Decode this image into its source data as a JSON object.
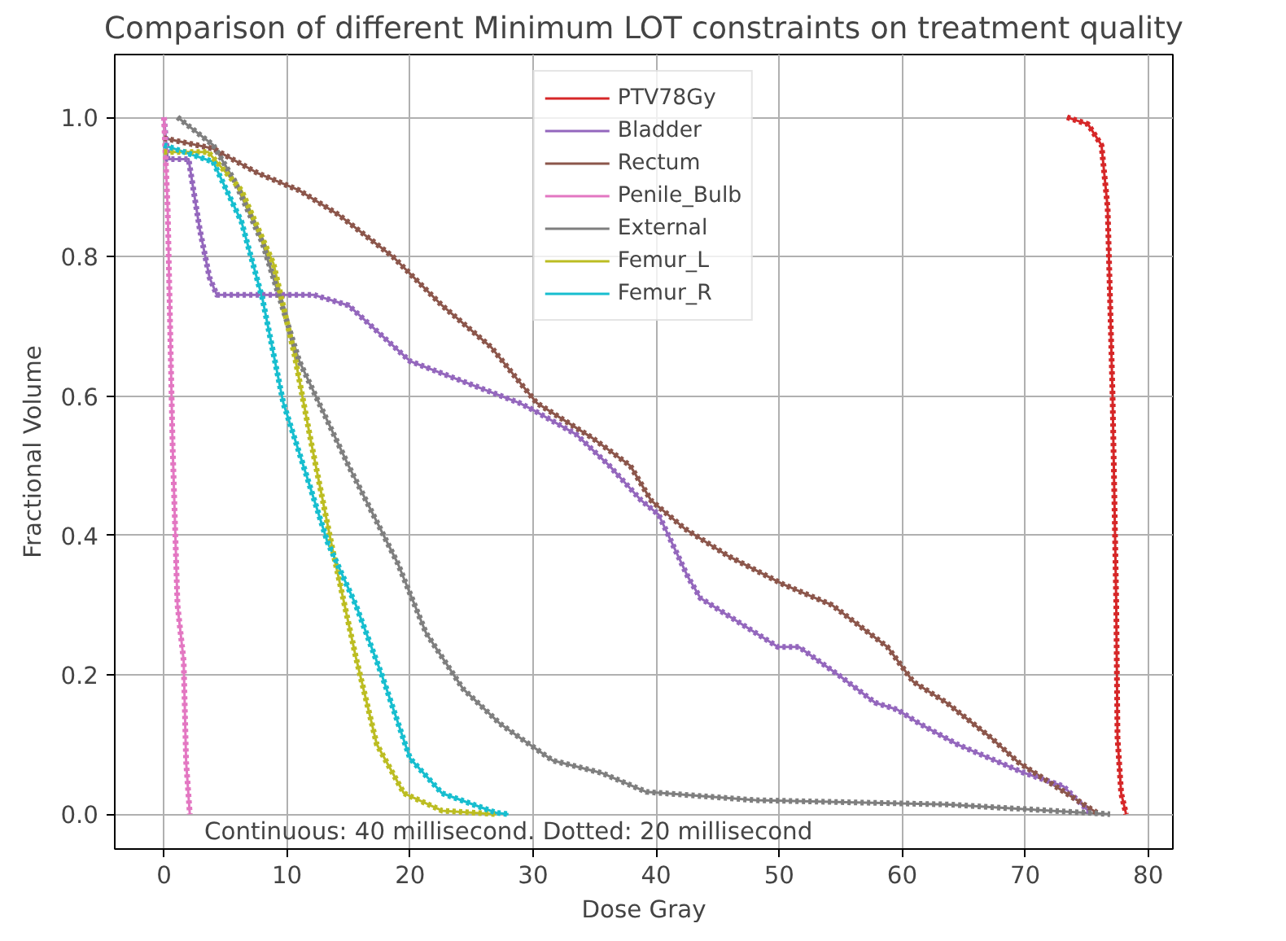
{
  "chart_data": {
    "type": "line",
    "title": "Comparison of different Minimum LOT constraints on treatment quality",
    "xlabel": "Dose Gray",
    "ylabel": "Fractional Volume",
    "xlim": [
      -4,
      82
    ],
    "ylim": [
      -0.05,
      1.09
    ],
    "xticks": [
      0,
      10,
      20,
      30,
      40,
      50,
      60,
      70,
      80
    ],
    "yticks": [
      {
        "value": 0,
        "label": "0.0"
      },
      {
        "value": 0.2,
        "label": "0.2"
      },
      {
        "value": 0.4,
        "label": "0.4"
      },
      {
        "value": 0.6,
        "label": "0.6"
      },
      {
        "value": 0.8,
        "label": "0.8"
      },
      {
        "value": 1,
        "label": "1.0"
      }
    ],
    "grid": true,
    "legend": "top",
    "marker": "none",
    "line_style": "solid",
    "annotations": [
      "Continuous: 40 millisecond. Dotted: 20 millisecond"
    ],
    "series": [
      {
        "name": "PTV78Gy",
        "color": "#d62728",
        "x": [
          73.4,
          75.1,
          76.2,
          76.7,
          77.1,
          77.4,
          77.5,
          77.8,
          78.2
        ],
        "values": [
          1.0,
          0.99,
          0.96,
          0.87,
          0.6,
          0.3,
          0.11,
          0.03,
          0
        ]
      },
      {
        "name": "Bladder",
        "color": "#9467bd",
        "x": [
          0,
          0.3,
          2,
          2.9,
          3.7,
          4.3,
          12.2,
          15,
          20,
          28.9,
          30,
          33.5,
          36.2,
          38.8,
          40.2,
          42.6,
          43.6,
          49.9,
          51.6,
          54.8,
          57.8,
          59.6,
          61.4,
          64.5,
          69.8,
          73.1,
          75.4
        ],
        "values": [
          1.0,
          0.94,
          0.94,
          0.84,
          0.77,
          0.745,
          0.745,
          0.73,
          0.65,
          0.59,
          0.58,
          0.545,
          0.5,
          0.45,
          0.43,
          0.34,
          0.31,
          0.24,
          0.24,
          0.2,
          0.16,
          0.15,
          0.13,
          0.1,
          0.06,
          0.04,
          0
        ]
      },
      {
        "name": "Rectum",
        "color": "#8c564b",
        "x": [
          0,
          4,
          7.6,
          11,
          14.2,
          18.6,
          22.6,
          26.6,
          28.9,
          30.3,
          34.8,
          37.9,
          39.6,
          42.3,
          45.9,
          50.3,
          54.3,
          58.8,
          60.9,
          63.6,
          67.2,
          69.4,
          72.9,
          76
        ],
        "values": [
          0.97,
          0.955,
          0.92,
          0.895,
          0.86,
          0.8,
          0.73,
          0.67,
          0.62,
          0.59,
          0.54,
          0.5,
          0.45,
          0.41,
          0.37,
          0.33,
          0.3,
          0.24,
          0.19,
          0.16,
          0.11,
          0.075,
          0.035,
          0
        ]
      },
      {
        "name": "Penile_Bulb",
        "color": "#e377c2",
        "x": [
          0,
          0.3,
          0.7,
          1.1,
          1.6,
          1.8,
          2.1
        ],
        "values": [
          1.0,
          0.87,
          0.53,
          0.3,
          0.22,
          0.075,
          0
        ]
      },
      {
        "name": "External",
        "color": "#7f7f7f",
        "x": [
          1.1,
          4,
          5.7,
          8,
          11,
          15,
          19,
          21.3,
          24.3,
          27.3,
          28.9,
          31.6,
          35.6,
          39.2,
          48.1,
          63.6,
          70.2,
          76.9
        ],
        "values": [
          1.0,
          0.96,
          0.91,
          0.82,
          0.65,
          0.5,
          0.36,
          0.26,
          0.18,
          0.13,
          0.11,
          0.077,
          0.059,
          0.032,
          0.02,
          0.014,
          0.007,
          0
        ]
      },
      {
        "name": "Femur_L",
        "color": "#bcbd22",
        "x": [
          0,
          3.6,
          6.3,
          8.9,
          10.6,
          12,
          13.7,
          15.6,
          17.3,
          19.5,
          22.6,
          27
        ],
        "values": [
          0.95,
          0.95,
          0.895,
          0.79,
          0.66,
          0.53,
          0.38,
          0.225,
          0.1,
          0.03,
          0.005,
          0
        ]
      },
      {
        "name": "Femur_R",
        "color": "#17becf",
        "x": [
          0,
          4,
          6.3,
          8,
          9.7,
          11.6,
          13.3,
          15.6,
          17.7,
          20,
          22.6,
          27,
          28
        ],
        "values": [
          0.96,
          0.936,
          0.85,
          0.74,
          0.59,
          0.485,
          0.39,
          0.3,
          0.2,
          0.08,
          0.03,
          0.002,
          0
        ]
      },
      {
        "color": "#d62728",
        "line_style": "dotted",
        "x": [
          73.4,
          75.1,
          76.2,
          76.7,
          77.1,
          77.4,
          77.5,
          77.8,
          78.2
        ],
        "values": [
          1.0,
          0.99,
          0.96,
          0.87,
          0.6,
          0.3,
          0.11,
          0.03,
          0
        ]
      },
      {
        "color": "#9467bd",
        "line_style": "dotted",
        "x": [
          0,
          0.3,
          2,
          2.9,
          3.7,
          4.3,
          12.2,
          15,
          20,
          28.9,
          30,
          33.5,
          36.2,
          38.8,
          40.2,
          42.6,
          43.6,
          49.9,
          51.6,
          54.8,
          57.8,
          59.6,
          61.4,
          64.5,
          69.8,
          73.1,
          75.4
        ],
        "values": [
          1.0,
          0.94,
          0.94,
          0.84,
          0.77,
          0.745,
          0.745,
          0.73,
          0.65,
          0.59,
          0.58,
          0.545,
          0.5,
          0.45,
          0.43,
          0.34,
          0.31,
          0.24,
          0.24,
          0.2,
          0.16,
          0.15,
          0.13,
          0.1,
          0.06,
          0.04,
          0
        ]
      },
      {
        "color": "#8c564b",
        "line_style": "dotted",
        "x": [
          0,
          4,
          7.6,
          11,
          14.2,
          18.6,
          22.6,
          26.6,
          28.9,
          30.3,
          34.8,
          37.9,
          39.6,
          42.3,
          45.9,
          50.3,
          54.3,
          58.8,
          60.9,
          63.6,
          67.2,
          69.4,
          72.9,
          76
        ],
        "values": [
          0.97,
          0.955,
          0.92,
          0.895,
          0.86,
          0.8,
          0.73,
          0.67,
          0.62,
          0.59,
          0.54,
          0.5,
          0.45,
          0.41,
          0.37,
          0.33,
          0.3,
          0.24,
          0.19,
          0.16,
          0.11,
          0.075,
          0.035,
          0
        ]
      },
      {
        "color": "#e377c2",
        "line_style": "dotted",
        "x": [
          0,
          0.3,
          0.7,
          1.1,
          1.6,
          1.8,
          2.1
        ],
        "values": [
          1.0,
          0.87,
          0.53,
          0.3,
          0.22,
          0.075,
          0
        ]
      },
      {
        "color": "#7f7f7f",
        "line_style": "dotted",
        "x": [
          1.1,
          4,
          5.7,
          8,
          11,
          15,
          19,
          21.3,
          24.3,
          27.3,
          28.9,
          31.6,
          35.6,
          39.2,
          48.1,
          63.6,
          70.2,
          76.9
        ],
        "values": [
          1.0,
          0.96,
          0.91,
          0.82,
          0.65,
          0.5,
          0.36,
          0.26,
          0.18,
          0.13,
          0.11,
          0.077,
          0.059,
          0.032,
          0.02,
          0.014,
          0.007,
          0
        ]
      },
      {
        "color": "#bcbd22",
        "line_style": "dotted",
        "x": [
          0,
          3.6,
          6.3,
          8.9,
          10.6,
          12,
          13.7,
          15.6,
          17.3,
          19.5,
          22.6,
          27
        ],
        "values": [
          0.95,
          0.95,
          0.895,
          0.79,
          0.66,
          0.53,
          0.38,
          0.225,
          0.1,
          0.03,
          0.005,
          0
        ]
      },
      {
        "color": "#17becf",
        "line_style": "dotted",
        "x": [
          0,
          4,
          6.3,
          8,
          9.7,
          11.6,
          13.3,
          15.6,
          17.7,
          20,
          22.6,
          27,
          28
        ],
        "values": [
          0.96,
          0.936,
          0.85,
          0.74,
          0.59,
          0.485,
          0.39,
          0.3,
          0.2,
          0.08,
          0.03,
          0.002,
          0
        ]
      }
    ]
  }
}
